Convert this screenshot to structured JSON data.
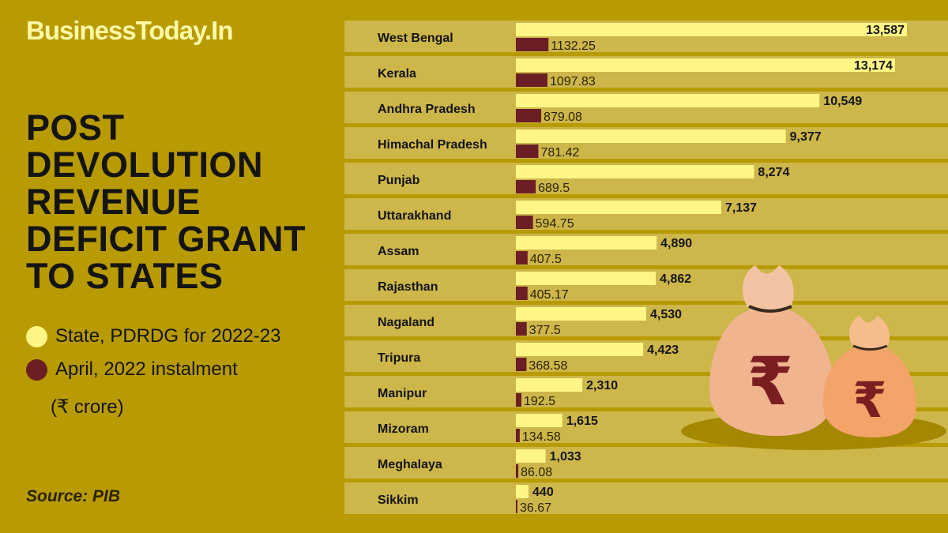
{
  "brand": "BusinessToday.In",
  "title_lines": [
    "POST",
    "DEVOLUTION",
    "REVENUE",
    "DEFICIT GRANT",
    "TO STATES"
  ],
  "legend": {
    "series1": "State, PDRDG for 2022-23",
    "series2": "April, 2022 instalment",
    "unit": "(₹ crore)"
  },
  "source": "Source: PIB",
  "colors": {
    "background": "#b89a02",
    "row_band": "#cdb64a",
    "series1": "#fff685",
    "series2": "#6b1f24",
    "brand": "#fff9a8"
  },
  "chart_data": {
    "type": "bar",
    "orientation": "horizontal",
    "categories": [
      "West Bengal",
      "Kerala",
      "Andhra Pradesh",
      "Himachal Pradesh",
      "Punjab",
      "Uttarakhand",
      "Assam",
      "Rajasthan",
      "Nagaland",
      "Tripura",
      "Manipur",
      "Mizoram",
      "Meghalaya",
      "Sikkim"
    ],
    "series": [
      {
        "name": "State, PDRDG for 2022-23",
        "values": [
          13587,
          13174,
          10549,
          9377,
          8274,
          7137,
          4890,
          4862,
          4530,
          4423,
          2310,
          1615,
          1033,
          440
        ],
        "labels": [
          "13,587",
          "13,174",
          "10,549",
          "9,377",
          "8,274",
          "7,137",
          "4,890",
          "4,862",
          "4,530",
          "4,423",
          "2,310",
          "1,615",
          "1,033",
          "440"
        ]
      },
      {
        "name": "April, 2022 instalment",
        "values": [
          1132.25,
          1097.83,
          879.08,
          781.42,
          689.5,
          594.75,
          407.5,
          405.17,
          377.5,
          368.58,
          192.5,
          134.58,
          86.08,
          36.67
        ],
        "labels": [
          "1132.25",
          "1097.83",
          "879.08",
          "781.42",
          "689.5",
          "594.75",
          "407.5",
          "405.17",
          "377.5",
          "368.58",
          "192.5",
          "134.58",
          "86.08",
          "36.67"
        ]
      }
    ],
    "unit": "₹ crore",
    "xlim": [
      0,
      13587
    ],
    "grid": false,
    "legend_position": "left"
  }
}
